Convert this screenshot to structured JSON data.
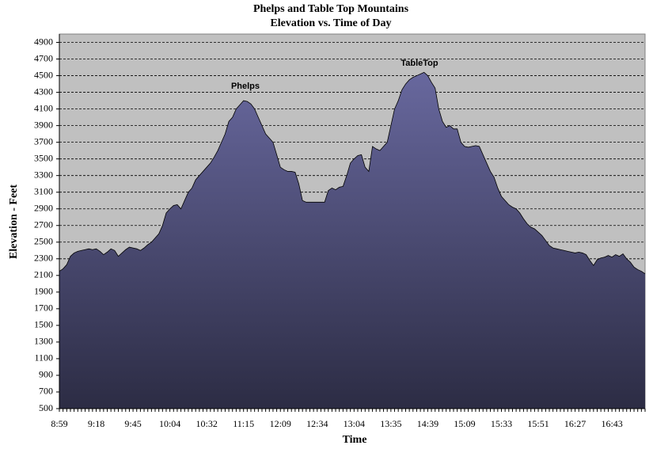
{
  "chart_data": {
    "type": "area",
    "title": "Phelps and Table Top Mountains",
    "subtitle": "Elevation vs. Time of Day",
    "x_label": "Time",
    "y_label": "Elevation - Feet",
    "annotations": [
      "Phelps",
      "TableTop"
    ],
    "categories": [
      "8:59",
      null,
      null,
      null,
      null,
      null,
      null,
      null,
      null,
      null,
      "9:18",
      null,
      null,
      null,
      null,
      null,
      null,
      null,
      null,
      null,
      "9:45",
      null,
      null,
      null,
      null,
      null,
      null,
      null,
      null,
      null,
      "10:04",
      null,
      null,
      null,
      null,
      null,
      null,
      null,
      null,
      null,
      "10:32",
      null,
      null,
      null,
      null,
      null,
      null,
      null,
      null,
      null,
      "11:15",
      null,
      null,
      null,
      null,
      null,
      null,
      null,
      null,
      null,
      "12:09",
      null,
      null,
      null,
      null,
      null,
      null,
      null,
      null,
      null,
      "12:34",
      null,
      null,
      null,
      null,
      null,
      null,
      null,
      null,
      null,
      "13:04",
      null,
      null,
      null,
      null,
      null,
      null,
      null,
      null,
      null,
      "13:35",
      null,
      null,
      null,
      null,
      null,
      null,
      null,
      null,
      null,
      "14:39",
      null,
      null,
      null,
      null,
      null,
      null,
      null,
      null,
      null,
      "15:09",
      null,
      null,
      null,
      null,
      null,
      null,
      null,
      null,
      null,
      "15:33",
      null,
      null,
      null,
      null,
      null,
      null,
      null,
      null,
      null,
      "15:51",
      null,
      null,
      null,
      null,
      null,
      null,
      null,
      null,
      null,
      "16:27",
      null,
      null,
      null,
      null,
      null,
      null,
      null,
      null,
      null,
      "16:43",
      null,
      null,
      null,
      null,
      null,
      null,
      null,
      null,
      null
    ],
    "values": [
      2150,
      2180,
      2230,
      2330,
      2370,
      2390,
      2400,
      2410,
      2420,
      2410,
      2420,
      2390,
      2350,
      2380,
      2420,
      2400,
      2330,
      2370,
      2410,
      2440,
      2430,
      2420,
      2400,
      2430,
      2470,
      2500,
      2550,
      2600,
      2700,
      2850,
      2900,
      2940,
      2950,
      2900,
      3000,
      3100,
      3150,
      3250,
      3300,
      3350,
      3400,
      3450,
      3520,
      3600,
      3700,
      3800,
      3950,
      4000,
      4100,
      4150,
      4200,
      4190,
      4160,
      4100,
      4000,
      3900,
      3800,
      3750,
      3700,
      3550,
      3400,
      3370,
      3350,
      3350,
      3340,
      3200,
      3000,
      2980,
      2980,
      2980,
      2980,
      2980,
      2980,
      3120,
      3150,
      3130,
      3160,
      3170,
      3300,
      3450,
      3500,
      3540,
      3550,
      3400,
      3350,
      3650,
      3620,
      3600,
      3650,
      3700,
      3900,
      4100,
      4200,
      4330,
      4400,
      4450,
      4480,
      4500,
      4520,
      4540,
      4500,
      4420,
      4350,
      4100,
      3950,
      3880,
      3900,
      3860,
      3860,
      3700,
      3650,
      3640,
      3650,
      3660,
      3650,
      3550,
      3450,
      3350,
      3280,
      3150,
      3050,
      3000,
      2950,
      2920,
      2900,
      2850,
      2780,
      2720,
      2680,
      2660,
      2620,
      2580,
      2520,
      2460,
      2430,
      2420,
      2410,
      2400,
      2390,
      2380,
      2370,
      2380,
      2370,
      2350,
      2280,
      2220,
      2290,
      2310,
      2320,
      2340,
      2320,
      2350,
      2330,
      2360,
      2300,
      2260,
      2200,
      2170,
      2150,
      2120
    ],
    "color": "#68689e",
    "background": "#c0c0c0",
    "ylim": [
      500,
      5000
    ],
    "yticks": [
      500,
      700,
      900,
      1100,
      1300,
      1500,
      1700,
      1900,
      2100,
      2300,
      2500,
      2700,
      2900,
      3100,
      3300,
      3500,
      3700,
      3900,
      4100,
      4300,
      4500,
      4700,
      4900
    ],
    "grid": true
  }
}
